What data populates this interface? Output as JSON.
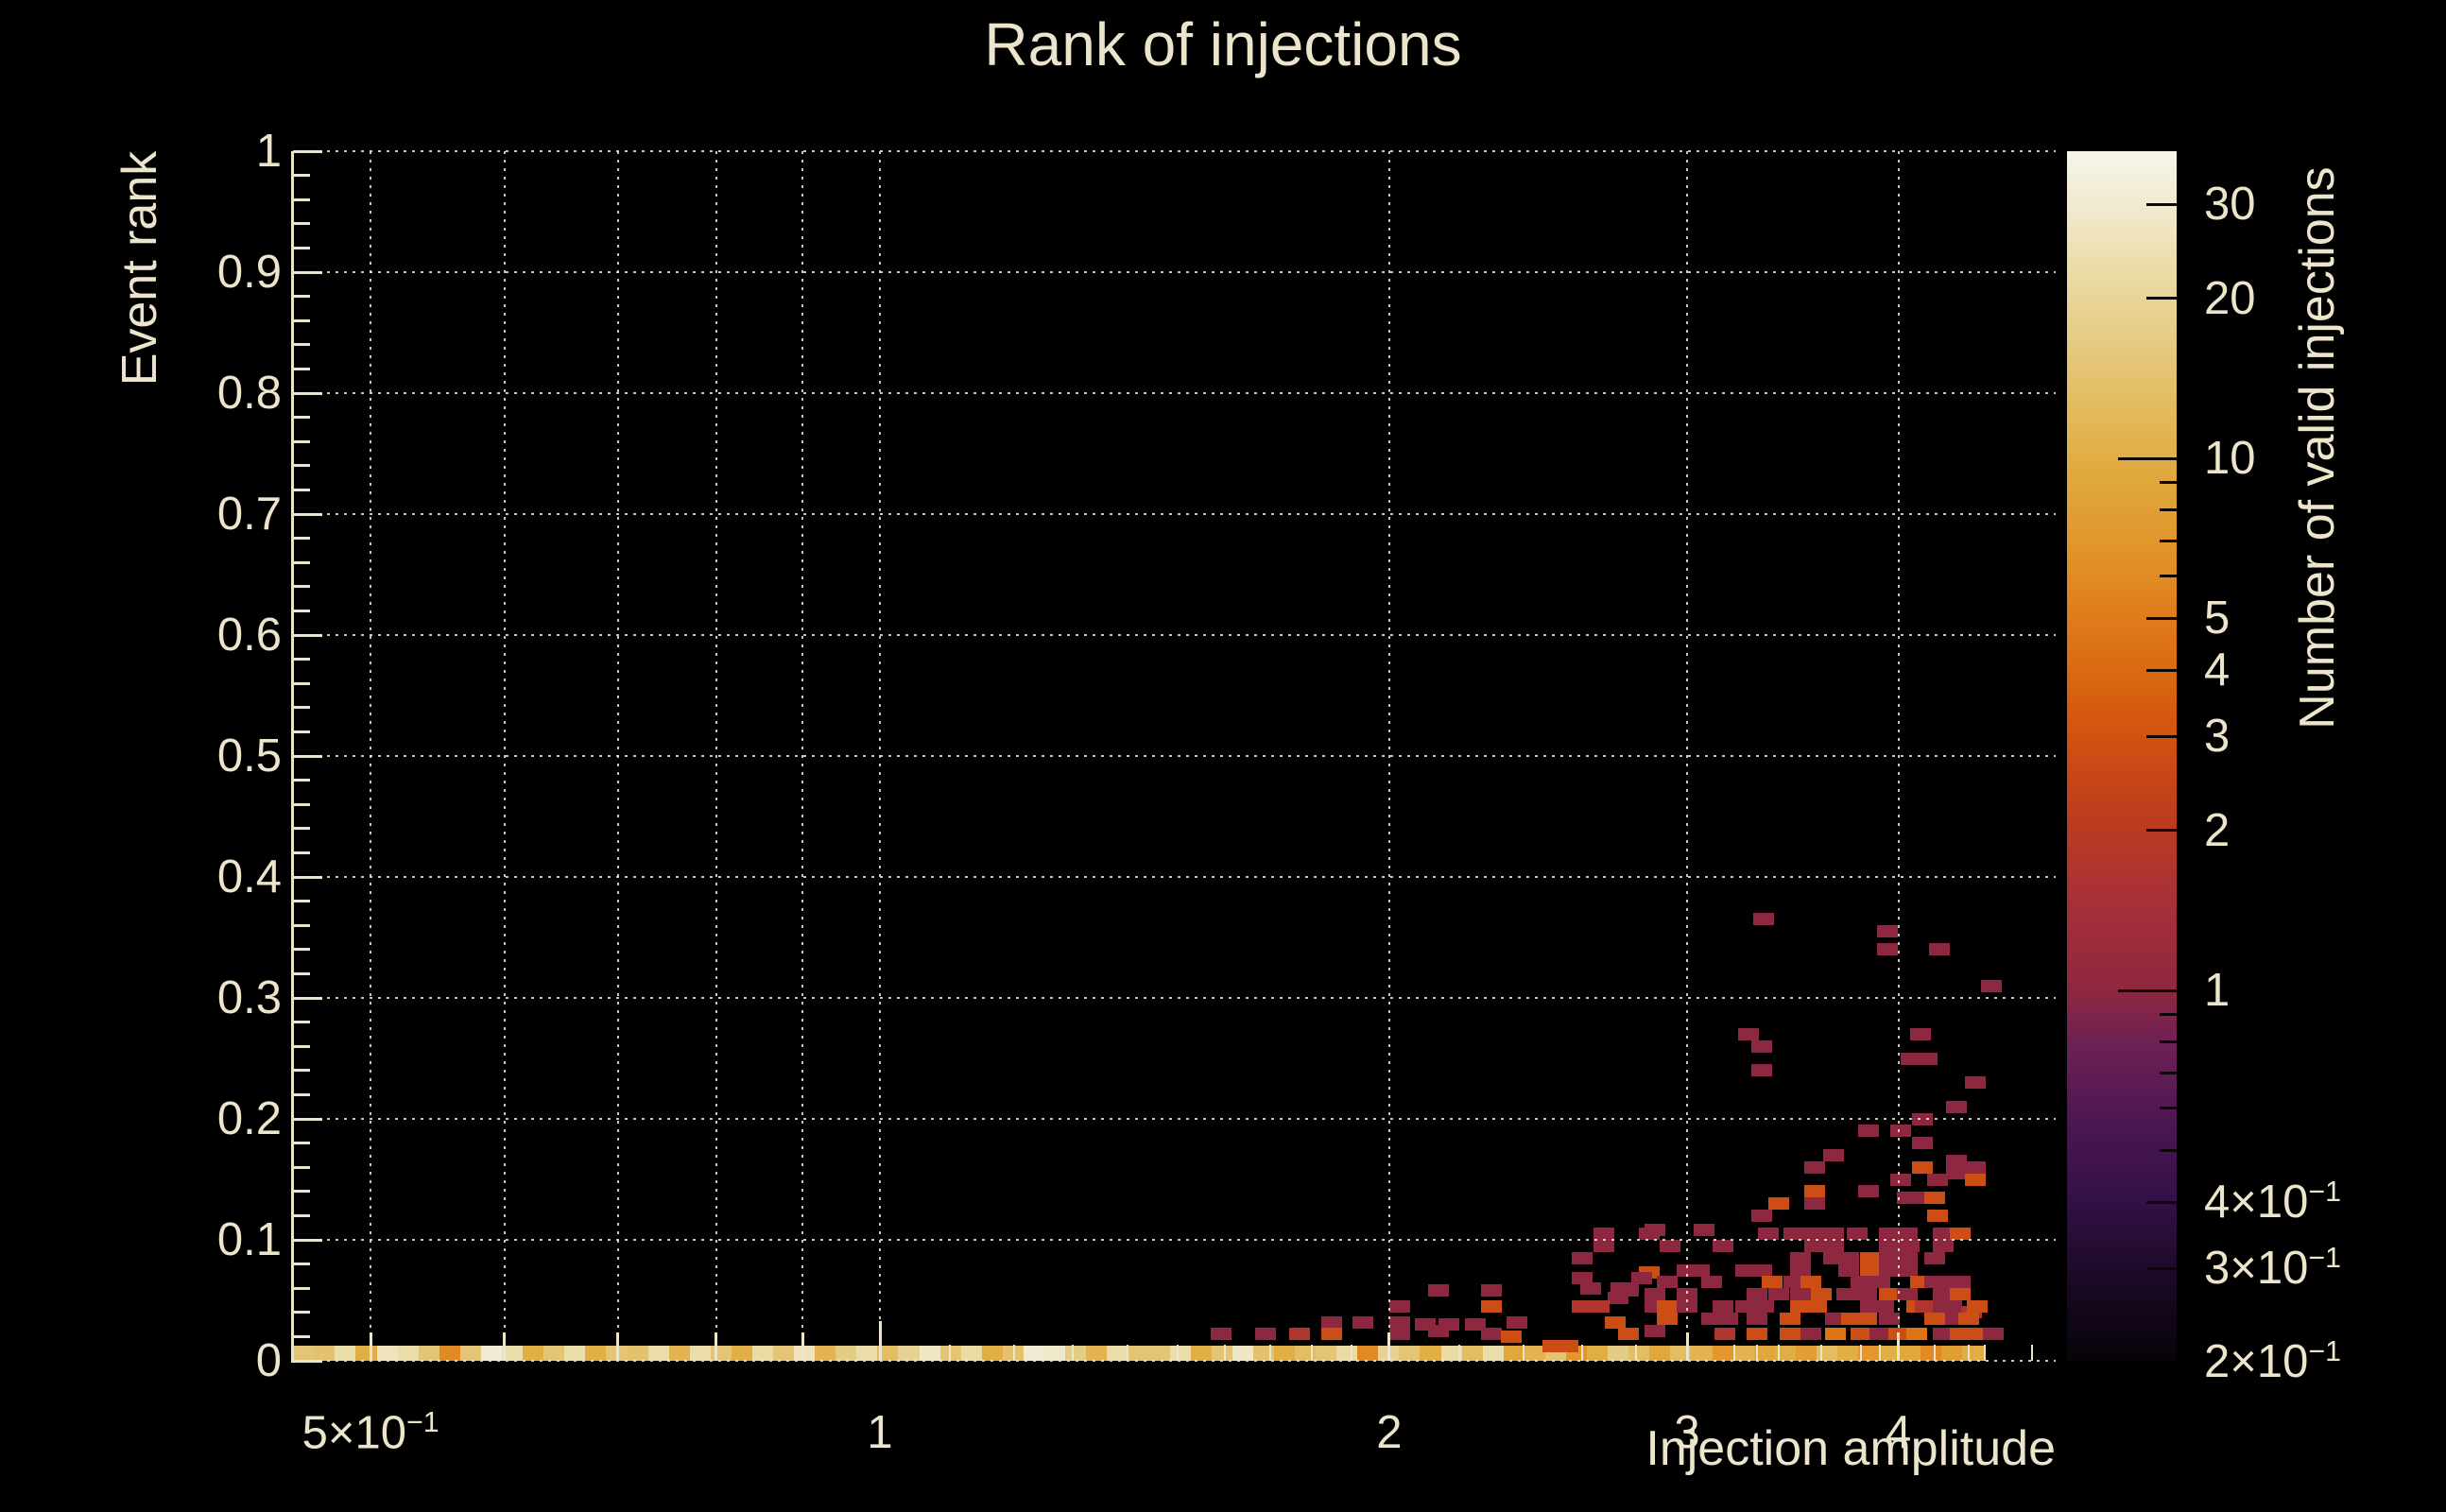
{
  "title": "Rank of injections",
  "x_axis": {
    "title": "Injection amplitude",
    "scale": "log",
    "min": 0.45,
    "max": 4.96,
    "tick_labels": [
      {
        "t": "5×10",
        "s": "−1",
        "v": 0.5
      },
      {
        "t": "1",
        "s": "",
        "v": 1
      },
      {
        "t": "2",
        "s": "",
        "v": 2
      },
      {
        "t": "3",
        "s": "",
        "v": 3
      },
      {
        "t": "4",
        "s": "",
        "v": 4
      }
    ],
    "grid_values": [
      0.5,
      0.6,
      0.7,
      0.8,
      0.9,
      1,
      2,
      3,
      4
    ]
  },
  "y_axis": {
    "title": "Event rank",
    "scale": "linear",
    "min": 0,
    "max": 1,
    "major_step": 0.1,
    "minor_step": 0.02,
    "tick_labels": [
      "0",
      "0.1",
      "0.2",
      "0.3",
      "0.4",
      "0.5",
      "0.6",
      "0.7",
      "0.8",
      "0.9",
      "1"
    ]
  },
  "colorbar": {
    "title": "Number of valid injections",
    "scale": "log",
    "min": 0.2,
    "max": 38,
    "tick_labels": [
      {
        "t": "30",
        "s": "",
        "v": 30
      },
      {
        "t": "20",
        "s": "",
        "v": 20
      },
      {
        "t": "10",
        "s": "",
        "v": 10
      },
      {
        "t": "5",
        "s": "",
        "v": 5
      },
      {
        "t": "4",
        "s": "",
        "v": 4
      },
      {
        "t": "3",
        "s": "",
        "v": 3
      },
      {
        "t": "2",
        "s": "",
        "v": 2
      },
      {
        "t": "1",
        "s": "",
        "v": 1
      },
      {
        "t": "4×10",
        "s": "−1",
        "v": 0.4
      },
      {
        "t": "3×10",
        "s": "−1",
        "v": 0.3
      },
      {
        "t": "2×10",
        "s": "−1",
        "v": 0.2
      }
    ],
    "long_ticks": [
      1,
      10
    ],
    "medium_ticks": [
      0.3,
      0.4,
      2,
      3,
      4,
      5,
      20,
      30
    ],
    "minor_ticks": [
      0.5,
      0.6,
      0.7,
      0.8,
      0.9,
      6,
      7,
      8,
      9
    ],
    "palette_stops": [
      {
        "v": 0.2,
        "c": "#070309"
      },
      {
        "v": 0.3,
        "c": "#1d0b2a"
      },
      {
        "v": 0.4,
        "c": "#331048"
      },
      {
        "v": 0.55,
        "c": "#4a1653"
      },
      {
        "v": 0.8,
        "c": "#6e2154"
      },
      {
        "v": 1,
        "c": "#8e2740"
      },
      {
        "v": 1.5,
        "c": "#a93137"
      },
      {
        "v": 2.2,
        "c": "#bf3e1c"
      },
      {
        "v": 3.2,
        "c": "#d4570f"
      },
      {
        "v": 4.5,
        "c": "#dd7315"
      },
      {
        "v": 6.5,
        "c": "#e29127"
      },
      {
        "v": 9,
        "c": "#e0a73a"
      },
      {
        "v": 13,
        "c": "#e3bd62"
      },
      {
        "v": 18,
        "c": "#e6cf8d"
      },
      {
        "v": 24,
        "c": "#ecdfae"
      },
      {
        "v": 30,
        "c": "#f1ead0"
      },
      {
        "v": 38,
        "c": "#f7f4ea"
      }
    ]
  },
  "colors": {
    "background": "#000000",
    "text": "#ece5cb",
    "grid": "#f0e9d0",
    "axis": "#ece5cb",
    "bar_tick": "#0d0805"
  },
  "chart_data": {
    "type": "heatmap",
    "title": "Rank of injections",
    "xlabel": "Injection amplitude",
    "ylabel": "Event rank",
    "zlabel": "Number of valid injections",
    "xlim": [
      0.45,
      4.96
    ],
    "ylim": [
      0,
      1
    ],
    "zlim": [
      0.2,
      38
    ],
    "x_bins": {
      "start": 0.45,
      "end": 4.49,
      "n": 81
    },
    "y_bin_height": 0.01,
    "bottom_row_rank": 0.005,
    "bottom_row_counts": [
      15,
      14,
      23,
      10,
      26,
      23,
      15,
      6,
      15,
      31,
      23,
      10,
      15,
      23,
      10,
      15,
      14,
      23,
      11,
      23,
      15,
      10,
      22,
      15,
      26,
      11,
      17,
      23,
      13,
      19,
      28,
      15,
      22,
      10,
      14,
      31,
      29,
      17,
      11,
      23,
      15,
      15,
      23,
      10,
      15,
      28,
      14,
      10,
      13,
      15,
      22,
      6,
      19,
      15,
      10,
      22,
      13,
      23,
      9,
      11,
      15,
      7,
      10,
      17,
      13,
      9,
      13,
      11,
      7,
      11,
      9,
      10,
      8,
      13,
      10,
      7,
      10,
      9,
      6,
      8,
      10
    ],
    "cells": [
      [
        3.33,
        0.365,
        1
      ],
      [
        3.94,
        0.355,
        1
      ],
      [
        3.94,
        0.34,
        1
      ],
      [
        4.23,
        0.34,
        1
      ],
      [
        4.54,
        0.31,
        1
      ],
      [
        3.26,
        0.27,
        1
      ],
      [
        4.12,
        0.27,
        1
      ],
      [
        3.32,
        0.26,
        1
      ],
      [
        4.07,
        0.25,
        1
      ],
      [
        4.16,
        0.25,
        1
      ],
      [
        3.32,
        0.24,
        1
      ],
      [
        4.44,
        0.23,
        1
      ],
      [
        4.33,
        0.21,
        1
      ],
      [
        4.13,
        0.2,
        1
      ],
      [
        3.84,
        0.19,
        1
      ],
      [
        4.01,
        0.19,
        1
      ],
      [
        4.13,
        0.18,
        1
      ],
      [
        3.66,
        0.17,
        1
      ],
      [
        4.33,
        0.165,
        1
      ],
      [
        3.57,
        0.16,
        1
      ],
      [
        4.13,
        0.16,
        2.8
      ],
      [
        4.44,
        0.16,
        1
      ],
      [
        4.33,
        0.155,
        1
      ],
      [
        4.01,
        0.15,
        1
      ],
      [
        4.22,
        0.15,
        1
      ],
      [
        4.44,
        0.15,
        2.8
      ],
      [
        3.57,
        0.14,
        2.8
      ],
      [
        3.84,
        0.14,
        1
      ],
      [
        4.05,
        0.135,
        1
      ],
      [
        4.1,
        0.135,
        1
      ],
      [
        4.2,
        0.135,
        2.8
      ],
      [
        3.4,
        0.13,
        2.8
      ],
      [
        3.57,
        0.13,
        1
      ],
      [
        3.32,
        0.12,
        1
      ],
      [
        4.22,
        0.12,
        2.8
      ],
      [
        2.68,
        0.105,
        1
      ],
      [
        2.85,
        0.105,
        1
      ],
      [
        2.87,
        0.108,
        1
      ],
      [
        3.07,
        0.108,
        1
      ],
      [
        3.35,
        0.105,
        1
      ],
      [
        3.47,
        0.105,
        1
      ],
      [
        3.57,
        0.105,
        1
      ],
      [
        3.66,
        0.105,
        1
      ],
      [
        3.78,
        0.105,
        1
      ],
      [
        3.95,
        0.105,
        1
      ],
      [
        4.05,
        0.105,
        1
      ],
      [
        4.25,
        0.105,
        1
      ],
      [
        4.35,
        0.105,
        2.8
      ],
      [
        2.68,
        0.095,
        1
      ],
      [
        2.93,
        0.095,
        1
      ],
      [
        3.15,
        0.095,
        1
      ],
      [
        3.57,
        0.095,
        1
      ],
      [
        3.66,
        0.095,
        1
      ],
      [
        3.95,
        0.095,
        1
      ],
      [
        4.06,
        0.095,
        1
      ],
      [
        4.25,
        0.095,
        1
      ],
      [
        2.6,
        0.085,
        1
      ],
      [
        3.5,
        0.085,
        1
      ],
      [
        3.66,
        0.085,
        1
      ],
      [
        3.74,
        0.085,
        1
      ],
      [
        3.85,
        0.085,
        2.8
      ],
      [
        3.95,
        0.085,
        1
      ],
      [
        4.05,
        0.085,
        1
      ],
      [
        4.2,
        0.085,
        1
      ],
      [
        2.85,
        0.073,
        2.8
      ],
      [
        3.0,
        0.075,
        1
      ],
      [
        3.05,
        0.075,
        1
      ],
      [
        3.25,
        0.075,
        1
      ],
      [
        3.32,
        0.075,
        1
      ],
      [
        3.5,
        0.075,
        1
      ],
      [
        3.74,
        0.075,
        1
      ],
      [
        3.85,
        0.075,
        2.8
      ],
      [
        3.95,
        0.075,
        1
      ],
      [
        4.05,
        0.075,
        1
      ],
      [
        2.6,
        0.068,
        1
      ],
      [
        2.82,
        0.068,
        1
      ],
      [
        2.92,
        0.065,
        1
      ],
      [
        3.1,
        0.065,
        1
      ],
      [
        3.37,
        0.065,
        2.8
      ],
      [
        3.47,
        0.065,
        1
      ],
      [
        3.55,
        0.065,
        2.8
      ],
      [
        3.8,
        0.065,
        1
      ],
      [
        3.9,
        0.065,
        1
      ],
      [
        4.12,
        0.065,
        2.8
      ],
      [
        4.2,
        0.065,
        1
      ],
      [
        4.25,
        0.065,
        1
      ],
      [
        4.35,
        0.065,
        1
      ],
      [
        2.14,
        0.058,
        1
      ],
      [
        2.3,
        0.058,
        1
      ],
      [
        2.63,
        0.06,
        1
      ],
      [
        2.74,
        0.06,
        1
      ],
      [
        2.77,
        0.058,
        1
      ],
      [
        2.73,
        0.052,
        1
      ],
      [
        2.87,
        0.055,
        1
      ],
      [
        3.0,
        0.055,
        1
      ],
      [
        3.3,
        0.055,
        1
      ],
      [
        3.4,
        0.055,
        1
      ],
      [
        3.5,
        0.055,
        1
      ],
      [
        3.6,
        0.055,
        2.8
      ],
      [
        3.73,
        0.055,
        1
      ],
      [
        3.83,
        0.055,
        1
      ],
      [
        3.95,
        0.055,
        2.8
      ],
      [
        4.05,
        0.055,
        1
      ],
      [
        4.25,
        0.055,
        1
      ],
      [
        4.3,
        0.055,
        1
      ],
      [
        4.35,
        0.055,
        2.8
      ],
      [
        2.03,
        0.045,
        1
      ],
      [
        2.3,
        0.045,
        2.8
      ],
      [
        2.6,
        0.045,
        1.7
      ],
      [
        2.66,
        0.045,
        1.7
      ],
      [
        2.87,
        0.045,
        1
      ],
      [
        2.92,
        0.045,
        2.8
      ],
      [
        3.0,
        0.045,
        1
      ],
      [
        3.15,
        0.045,
        1
      ],
      [
        3.25,
        0.045,
        1
      ],
      [
        3.33,
        0.045,
        1
      ],
      [
        3.5,
        0.045,
        2.8
      ],
      [
        3.58,
        0.045,
        2.8
      ],
      [
        3.85,
        0.045,
        1
      ],
      [
        3.92,
        0.045,
        1
      ],
      [
        4.1,
        0.045,
        2.8
      ],
      [
        4.15,
        0.045,
        1.7
      ],
      [
        4.25,
        0.045,
        1
      ],
      [
        4.3,
        0.045,
        1
      ],
      [
        4.42,
        0.04,
        1.7
      ],
      [
        4.45,
        0.045,
        2.8
      ],
      [
        1.85,
        0.032,
        1
      ],
      [
        1.93,
        0.032,
        1
      ],
      [
        2.03,
        0.032,
        1
      ],
      [
        2.1,
        0.03,
        1
      ],
      [
        2.17,
        0.03,
        1
      ],
      [
        2.25,
        0.03,
        1
      ],
      [
        2.38,
        0.032,
        1
      ],
      [
        2.72,
        0.032,
        2.8
      ],
      [
        2.92,
        0.035,
        2.8
      ],
      [
        3.1,
        0.035,
        1
      ],
      [
        3.17,
        0.035,
        1
      ],
      [
        3.3,
        0.035,
        1
      ],
      [
        3.45,
        0.035,
        2.8
      ],
      [
        3.67,
        0.035,
        1
      ],
      [
        3.75,
        0.035,
        2.8
      ],
      [
        3.83,
        0.035,
        2.8
      ],
      [
        3.95,
        0.035,
        1
      ],
      [
        4.2,
        0.035,
        2.8
      ],
      [
        4.32,
        0.035,
        1
      ],
      [
        4.4,
        0.035,
        2.8
      ],
      [
        1.59,
        0.022,
        1
      ],
      [
        1.69,
        0.022,
        1
      ],
      [
        1.77,
        0.022,
        1.7
      ],
      [
        1.85,
        0.022,
        2.8
      ],
      [
        2.03,
        0.022,
        1
      ],
      [
        2.14,
        0.025,
        1
      ],
      [
        2.3,
        0.022,
        1
      ],
      [
        2.36,
        0.02,
        2.8
      ],
      [
        2.77,
        0.022,
        2.8
      ],
      [
        2.87,
        0.025,
        1
      ],
      [
        3.16,
        0.022,
        1.7
      ],
      [
        3.3,
        0.022,
        2.8
      ],
      [
        3.45,
        0.022,
        2.8
      ],
      [
        3.55,
        0.022,
        1
      ],
      [
        3.67,
        0.022,
        4.5
      ],
      [
        3.8,
        0.022,
        2.8
      ],
      [
        3.9,
        0.022,
        1
      ],
      [
        4.0,
        0.022,
        2.8
      ],
      [
        4.1,
        0.022,
        4.5
      ],
      [
        4.25,
        0.022,
        1
      ],
      [
        4.35,
        0.022,
        2.8
      ],
      [
        4.45,
        0.022,
        2.8
      ],
      [
        4.55,
        0.022,
        1
      ],
      [
        2.5,
        0.012,
        2.8
      ],
      [
        2.55,
        0.012,
        2.8
      ]
    ]
  }
}
